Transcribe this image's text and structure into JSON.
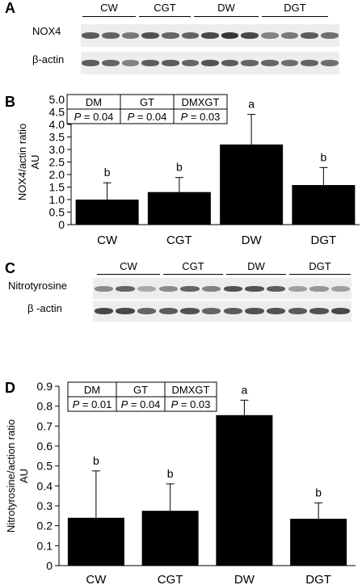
{
  "panelA": {
    "letter": "A",
    "row1_label": "NOX4",
    "row2_label": "β-actin",
    "groups": [
      "CW",
      "CGT",
      "DW",
      "DGT"
    ],
    "row1_band_darkness": [
      0.75,
      0.7,
      0.6,
      0.8,
      0.7,
      0.7,
      0.85,
      0.95,
      0.85,
      0.55,
      0.6,
      0.75,
      0.65
    ],
    "row2_band_darkness": [
      0.75,
      0.7,
      0.55,
      0.75,
      0.75,
      0.7,
      0.8,
      0.75,
      0.7,
      0.7,
      0.65,
      0.7,
      0.65
    ]
  },
  "panelB": {
    "letter": "B",
    "ylabel_line1": "NOX4/actin ratio",
    "ylabel_line2": "AU",
    "stats_table": {
      "headers": [
        "DM",
        "GT",
        "DMXGT"
      ],
      "values": [
        "P = 0.04",
        "P = 0.04",
        "P = 0.03"
      ]
    }
  },
  "panelC": {
    "letter": "C",
    "row1_label": "Nitrotyrosine",
    "row2_label": "β -actin",
    "groups": [
      "CW",
      "CGT",
      "DW",
      "DGT"
    ],
    "row1_band_darkness": [
      0.5,
      0.7,
      0.35,
      0.5,
      0.7,
      0.55,
      0.8,
      0.8,
      0.75,
      0.4,
      0.45,
      0.4
    ],
    "row2_band_darkness": [
      0.85,
      0.85,
      0.7,
      0.75,
      0.8,
      0.7,
      0.75,
      0.8,
      0.8,
      0.75,
      0.8,
      0.85
    ]
  },
  "panelD": {
    "letter": "D",
    "ylabel_line1": "Nitrotyrosine/action ratio",
    "ylabel_line2": "AU",
    "stats_table": {
      "headers": [
        "DM",
        "GT",
        "DMXGT"
      ],
      "values": [
        "P = 0.01",
        "P = 0.04",
        "P = 0.03"
      ]
    }
  },
  "chart_data": [
    {
      "type": "bar",
      "categories": [
        "CW",
        "CGT",
        "DW",
        "DGT"
      ],
      "values": [
        1.0,
        1.3,
        3.2,
        1.58
      ],
      "error_upper": [
        0.67,
        0.58,
        1.2,
        0.7
      ],
      "significance_letters": [
        "b",
        "b",
        "a",
        "b"
      ],
      "ylim": [
        0,
        5.0
      ],
      "yticks": [
        "0",
        "0.5",
        "1.0",
        "1.5",
        "2.0",
        "2.5",
        "3.0",
        "3.5",
        "4.0",
        "4.5",
        "5.0"
      ],
      "xlabel": "",
      "ylabel": "NOX4/actin ratio AU",
      "grid": false,
      "bar_color": "#000000"
    },
    {
      "type": "bar",
      "categories": [
        "CW",
        "CGT",
        "DW",
        "DGT"
      ],
      "values": [
        0.24,
        0.275,
        0.755,
        0.235
      ],
      "error_upper": [
        0.235,
        0.135,
        0.075,
        0.08
      ],
      "significance_letters": [
        "b",
        "b",
        "a",
        "b"
      ],
      "ylim": [
        0,
        0.9
      ],
      "yticks": [
        "0",
        "0.1",
        "0.2",
        "0.3",
        "0.4",
        "0.5",
        "0.6",
        "0.7",
        "0.8",
        "0.9"
      ],
      "xlabel": "",
      "ylabel": "Nitrotyrosine/action ratio AU",
      "grid": false,
      "bar_color": "#000000"
    }
  ]
}
